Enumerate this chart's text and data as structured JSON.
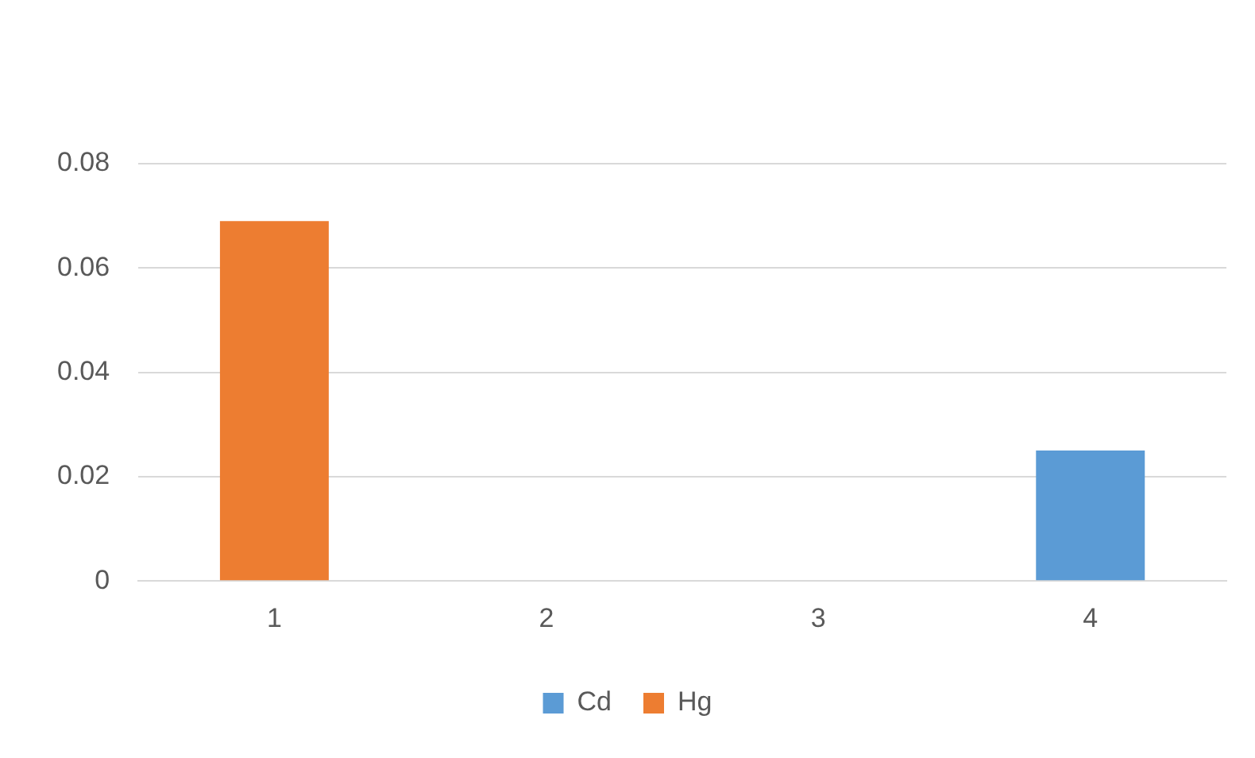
{
  "chart_data": {
    "type": "bar",
    "categories": [
      "1",
      "2",
      "3",
      "4"
    ],
    "stacked": true,
    "series": [
      {
        "name": "Cd",
        "color": "#5b9bd5",
        "values": [
          0,
          0,
          0,
          0.025
        ]
      },
      {
        "name": "Hg",
        "color": "#ed7d31",
        "values": [
          0.069,
          0,
          0,
          0
        ]
      }
    ],
    "ylim": [
      0,
      0.08
    ],
    "yticks": [
      0,
      0.02,
      0.04,
      0.06,
      0.08
    ],
    "grid": "y",
    "legend": "bottom"
  }
}
